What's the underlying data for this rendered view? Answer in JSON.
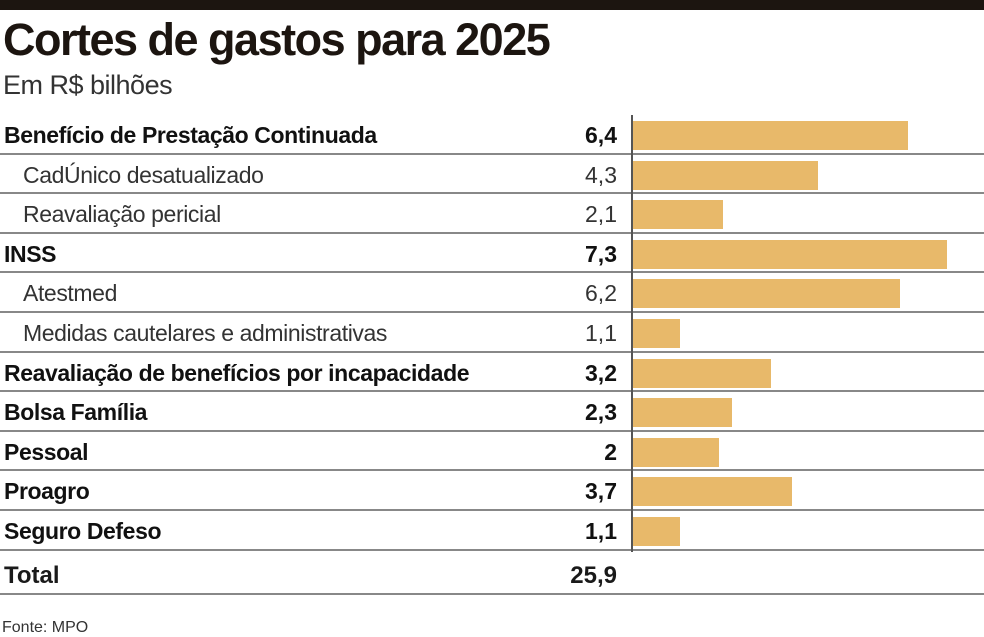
{
  "chart_data": {
    "type": "bar",
    "orientation": "horizontal",
    "title": "Cortes de gastos para 2025",
    "subtitle": "Em R$ bilhões",
    "rows": [
      {
        "label": "Benefício de Prestação Continuada",
        "value": 6.4,
        "value_text": "6,4",
        "level": "main"
      },
      {
        "label": "CadÚnico desatualizado",
        "value": 4.3,
        "value_text": "4,3",
        "level": "sub"
      },
      {
        "label": "Reavaliação pericial",
        "value": 2.1,
        "value_text": "2,1",
        "level": "sub"
      },
      {
        "label": "INSS",
        "value": 7.3,
        "value_text": "7,3",
        "level": "main"
      },
      {
        "label": "Atestmed",
        "value": 6.2,
        "value_text": "6,2",
        "level": "sub"
      },
      {
        "label": "Medidas cautelares e administrativas",
        "value": 1.1,
        "value_text": "1,1",
        "level": "sub"
      },
      {
        "label": "Reavaliação de benefícios por incapacidade",
        "value": 3.2,
        "value_text": "3,2",
        "level": "main"
      },
      {
        "label": "Bolsa Família",
        "value": 2.3,
        "value_text": "2,3",
        "level": "main"
      },
      {
        "label": "Pessoal",
        "value": 2,
        "value_text": "2",
        "level": "main"
      },
      {
        "label": "Proagro",
        "value": 3.7,
        "value_text": "3,7",
        "level": "main"
      },
      {
        "label": "Seguro Defeso",
        "value": 1.1,
        "value_text": "1,1",
        "level": "main"
      }
    ],
    "total": {
      "label": "Total",
      "value_text": "25,9"
    },
    "xlim": [
      0,
      7.3
    ],
    "bar_color": "#e8b96a",
    "source": "Fonte: MPO"
  }
}
